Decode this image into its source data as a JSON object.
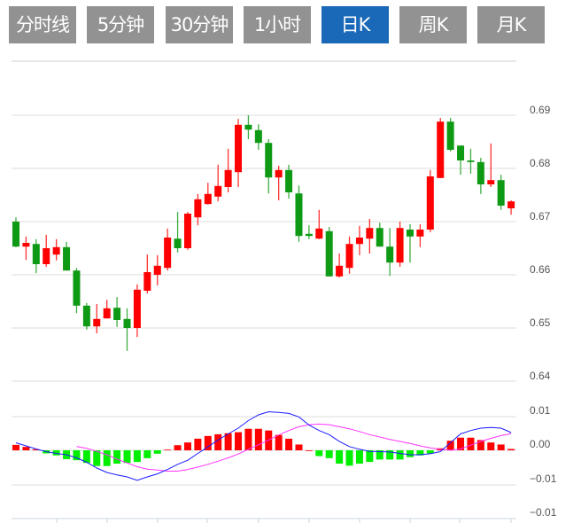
{
  "tabs": [
    {
      "label": "分时线",
      "active": false
    },
    {
      "label": "5分钟",
      "active": false
    },
    {
      "label": "30分钟",
      "active": false
    },
    {
      "label": "1小时",
      "active": false
    },
    {
      "label": "日K",
      "active": true
    },
    {
      "label": "周K",
      "active": false
    },
    {
      "label": "月K",
      "active": false
    }
  ],
  "colors": {
    "up": "#ff0000",
    "down": "#0f9a15",
    "hist_up": "#ff0000",
    "hist_down": "#00ee00",
    "dif": "#1a1aff",
    "dea": "#ff33ff",
    "active_tab": "#1a68b8",
    "tab": "#929292",
    "grid": "#dddddd"
  },
  "chart_data": [
    {
      "type": "candlestick",
      "title": "",
      "ylim": [
        0.64,
        0.69
      ],
      "yticks": [
        "0.69",
        "0.68",
        "0.67",
        "0.66",
        "0.65",
        "0.64"
      ],
      "grid": true,
      "ohlc": [
        [
          0.67,
          0.6708,
          0.6652,
          0.6653
        ],
        [
          0.6653,
          0.6672,
          0.6628,
          0.666
        ],
        [
          0.6658,
          0.6667,
          0.6603,
          0.662
        ],
        [
          0.662,
          0.6675,
          0.6615,
          0.665
        ],
        [
          0.6638,
          0.6667,
          0.6627,
          0.6652
        ],
        [
          0.6652,
          0.6662,
          0.6608,
          0.6608
        ],
        [
          0.6608,
          0.6613,
          0.6528,
          0.6542
        ],
        [
          0.6542,
          0.6547,
          0.6497,
          0.6503
        ],
        [
          0.6503,
          0.6545,
          0.649,
          0.6517
        ],
        [
          0.6518,
          0.6553,
          0.6518,
          0.6537
        ],
        [
          0.6538,
          0.6558,
          0.6502,
          0.6515
        ],
        [
          0.6517,
          0.6537,
          0.6457,
          0.65
        ],
        [
          0.65,
          0.6582,
          0.6483,
          0.6572
        ],
        [
          0.657,
          0.6638,
          0.6565,
          0.6605
        ],
        [
          0.66,
          0.6637,
          0.658,
          0.6617
        ],
        [
          0.6613,
          0.6687,
          0.6608,
          0.667
        ],
        [
          0.6668,
          0.6718,
          0.6642,
          0.665
        ],
        [
          0.665,
          0.6718,
          0.6647,
          0.6715
        ],
        [
          0.6708,
          0.6752,
          0.6693,
          0.6742
        ],
        [
          0.6733,
          0.6773,
          0.6732,
          0.6752
        ],
        [
          0.6747,
          0.6807,
          0.6738,
          0.6767
        ],
        [
          0.6765,
          0.6837,
          0.6755,
          0.6797
        ],
        [
          0.6793,
          0.6893,
          0.6765,
          0.6882
        ],
        [
          0.6882,
          0.69,
          0.6855,
          0.6873
        ],
        [
          0.6872,
          0.6883,
          0.6835,
          0.6848
        ],
        [
          0.6848,
          0.6855,
          0.6753,
          0.6783
        ],
        [
          0.6783,
          0.6805,
          0.674,
          0.6797
        ],
        [
          0.6797,
          0.6807,
          0.6743,
          0.6755
        ],
        [
          0.6753,
          0.6768,
          0.6662,
          0.6673
        ],
        [
          0.6677,
          0.6693,
          0.6667,
          0.6673
        ],
        [
          0.6668,
          0.6722,
          0.6667,
          0.6687
        ],
        [
          0.6682,
          0.669,
          0.6597,
          0.6597
        ],
        [
          0.6597,
          0.664,
          0.6595,
          0.6617
        ],
        [
          0.6613,
          0.6672,
          0.6602,
          0.6658
        ],
        [
          0.6658,
          0.6692,
          0.6637,
          0.667
        ],
        [
          0.6668,
          0.6705,
          0.664,
          0.6688
        ],
        [
          0.6688,
          0.6698,
          0.6653,
          0.6653
        ],
        [
          0.6653,
          0.6688,
          0.6598,
          0.6623
        ],
        [
          0.6623,
          0.67,
          0.6615,
          0.6688
        ],
        [
          0.6685,
          0.6695,
          0.6623,
          0.6672
        ],
        [
          0.6672,
          0.6695,
          0.6652,
          0.6685
        ],
        [
          0.6685,
          0.6797,
          0.668,
          0.6785
        ],
        [
          0.6782,
          0.6895,
          0.6782,
          0.6888
        ],
        [
          0.6888,
          0.6895,
          0.6832,
          0.6835
        ],
        [
          0.6843,
          0.6843,
          0.6788,
          0.6815
        ],
        [
          0.6815,
          0.6837,
          0.679,
          0.6812
        ],
        [
          0.6812,
          0.682,
          0.6752,
          0.677
        ],
        [
          0.677,
          0.6847,
          0.6765,
          0.6778
        ],
        [
          0.6778,
          0.6788,
          0.6722,
          0.673
        ],
        [
          0.6725,
          0.674,
          0.6713,
          0.6738
        ]
      ]
    },
    {
      "type": "macd",
      "ylim": [
        -0.02,
        0.01
      ],
      "yticks": [
        "0.01",
        "0.00",
        "−0.01",
        "−0.01"
      ],
      "grid": true,
      "histogram": [
        0.0016,
        0.001,
        0.0003,
        -0.0009,
        -0.0015,
        -0.0026,
        -0.0029,
        -0.0037,
        -0.0046,
        -0.0046,
        -0.0039,
        -0.0037,
        -0.0034,
        -0.0023,
        -0.001,
        0.0002,
        0.0015,
        0.0023,
        0.0034,
        0.0042,
        0.0047,
        0.005,
        0.0053,
        0.0063,
        0.0063,
        0.0058,
        0.0045,
        0.0034,
        0.0017,
        0,
        -0.0017,
        -0.0023,
        -0.0039,
        -0.0045,
        -0.0039,
        -0.0034,
        -0.0027,
        -0.0027,
        -0.0027,
        -0.002,
        -0.0015,
        -0.0009,
        0.0006,
        0.0028,
        0.0037,
        0.0037,
        0.003,
        0.0023,
        0.0017,
        0.0004
      ],
      "dif": [
        0.0022,
        0.0013,
        0.0004,
        -0.0004,
        -0.0009,
        -0.0013,
        -0.0022,
        -0.0035,
        -0.0052,
        -0.0065,
        -0.0072,
        -0.0078,
        -0.0088,
        -0.0078,
        -0.0069,
        -0.0056,
        -0.0041,
        -0.0029,
        -0.0009,
        0.001,
        0.003,
        0.0048,
        0.0065,
        0.0087,
        0.0104,
        0.0113,
        0.0111,
        0.0108,
        0.0098,
        0.0074,
        0.0058,
        0.0046,
        0.0026,
        0.0011,
        0.0003,
        -0.0003,
        -0.0004,
        -0.0005,
        -0.0009,
        -0.0013,
        -0.0013,
        -0.001,
        -0.0004,
        0.0022,
        0.0048,
        0.0058,
        0.0065,
        0.0067,
        0.0065,
        0.0052
      ],
      "dea": [
        null,
        null,
        null,
        null,
        null,
        null,
        0.0011,
        0.0006,
        -0.0003,
        -0.0013,
        -0.0026,
        -0.0037,
        -0.0048,
        -0.0055,
        -0.0058,
        -0.0061,
        -0.0061,
        -0.0056,
        -0.0049,
        -0.0041,
        -0.0032,
        -0.0022,
        -0.0011,
        0.0003,
        0.0016,
        0.003,
        0.0045,
        0.0058,
        0.0069,
        0.0075,
        0.0077,
        0.0075,
        0.0069,
        0.0063,
        0.0055,
        0.0046,
        0.0039,
        0.0032,
        0.0026,
        0.002,
        0.0013,
        0.0007,
        0.0003,
        0,
        0.0004,
        0.0015,
        0.0026,
        0.0035,
        0.0043,
        0.0049
      ]
    }
  ]
}
